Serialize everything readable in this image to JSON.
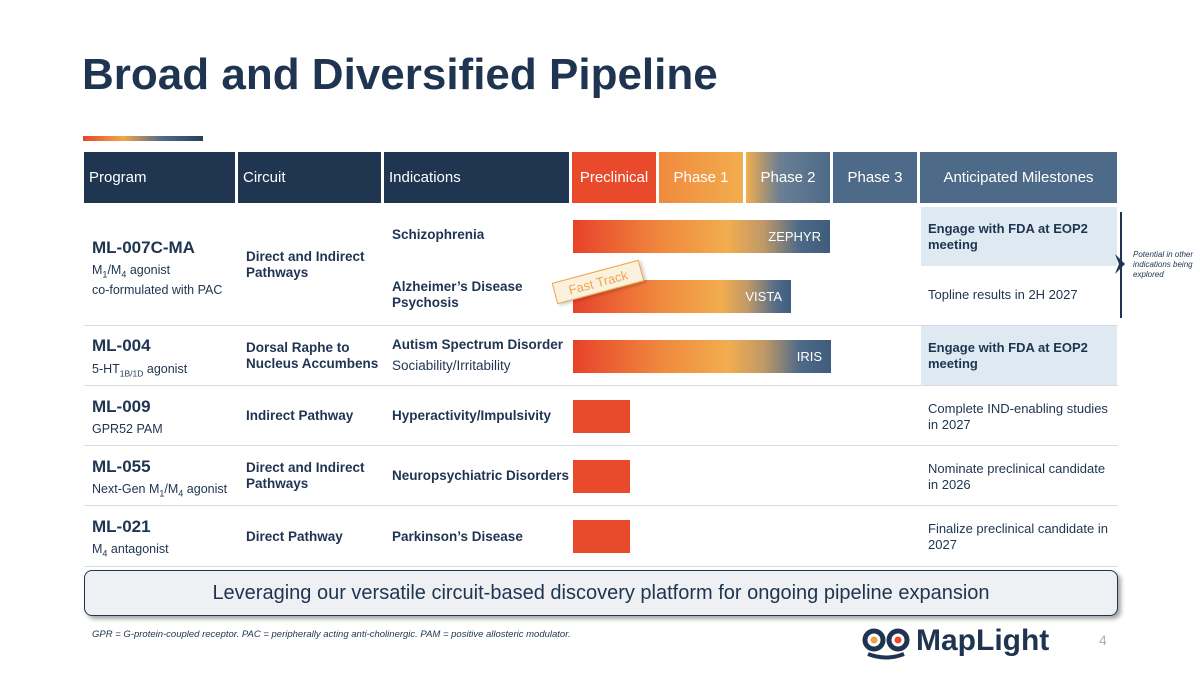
{
  "title": "Broad and Diversified Pipeline",
  "headers": {
    "program": "Program",
    "circuit": "Circuit",
    "indications": "Indications",
    "preclinical": "Preclinical",
    "phase1": "Phase 1",
    "phase2": "Phase 2",
    "phase3": "Phase 3",
    "milestones": "Anticipated Milestones"
  },
  "header_colors": {
    "dark": "#1f3550",
    "preclinical": "#ea4a2c",
    "phase1": "#f0a04a",
    "phase3": "#4d6a88",
    "milestones": "#4d6a88"
  },
  "rows": [
    {
      "program": "ML-007C-MA",
      "sub_line1_pre": "M",
      "sub_line1_s1": "1",
      "sub_line1_mid": "/M",
      "sub_line1_s2": "4",
      "sub_line1_post": " agonist",
      "sub_line2": "co-formulated with PAC",
      "circuit": "Direct and Indirect Pathways",
      "indication_1": "Schizophrenia",
      "bar_1_label": "ZEPHYR",
      "bar_1_stage": "Phase 2",
      "milestone_1": "Engage with FDA at EOP2 meeting",
      "indication_2": "Alzheimer’s Disease Psychosis",
      "bar_2_label": "VISTA",
      "bar_2_stage": "Phase 2",
      "milestone_2": "Topline results in 2H 2027",
      "badge": "Fast Track"
    },
    {
      "program": "ML-004",
      "sub_pre": "5-HT",
      "sub_sub": "1B/1D",
      "sub_post": " agonist",
      "circuit": "Dorsal Raphe to Nucleus Accumbens",
      "indication": "Autism Spectrum Disorder",
      "indication_detail": "Sociability/Irritability",
      "bar_label": "IRIS",
      "bar_stage": "Phase 2",
      "milestone": "Engage with FDA at EOP2 meeting"
    },
    {
      "program": "ML-009",
      "sub": "GPR52 PAM",
      "circuit": "Indirect Pathway",
      "indication": "Hyperactivity/Impulsivity",
      "bar_stage": "Preclinical",
      "milestone": "Complete IND-enabling studies in 2027"
    },
    {
      "program": "ML-055",
      "sub_pre": "Next-Gen M",
      "sub_s1": "1",
      "sub_mid": "/M",
      "sub_s2": "4",
      "sub_post": " agonist",
      "circuit": "Direct and Indirect Pathways",
      "indication": "Neuropsychiatric Disorders",
      "bar_stage": "Preclinical",
      "milestone": "Nominate preclinical candidate in 2026"
    },
    {
      "program": "ML-021",
      "sub_pre": "M",
      "sub_s1": "4",
      "sub_post": " antagonist",
      "circuit": "Direct Pathway",
      "indication": "Parkinson’s Disease",
      "bar_stage": "Preclinical",
      "milestone": "Finalize preclinical candidate in 2027"
    }
  ],
  "side_note": "Potential in other indications being explored",
  "banner": "Leveraging our versatile circuit-based discovery platform for ongoing pipeline expansion",
  "footnote": "GPR = G-protein-coupled receptor. PAC = peripherally acting anti-cholinergic. PAM = positive allosteric modulator.",
  "logo_text": "MapLight",
  "page_number": "4"
}
